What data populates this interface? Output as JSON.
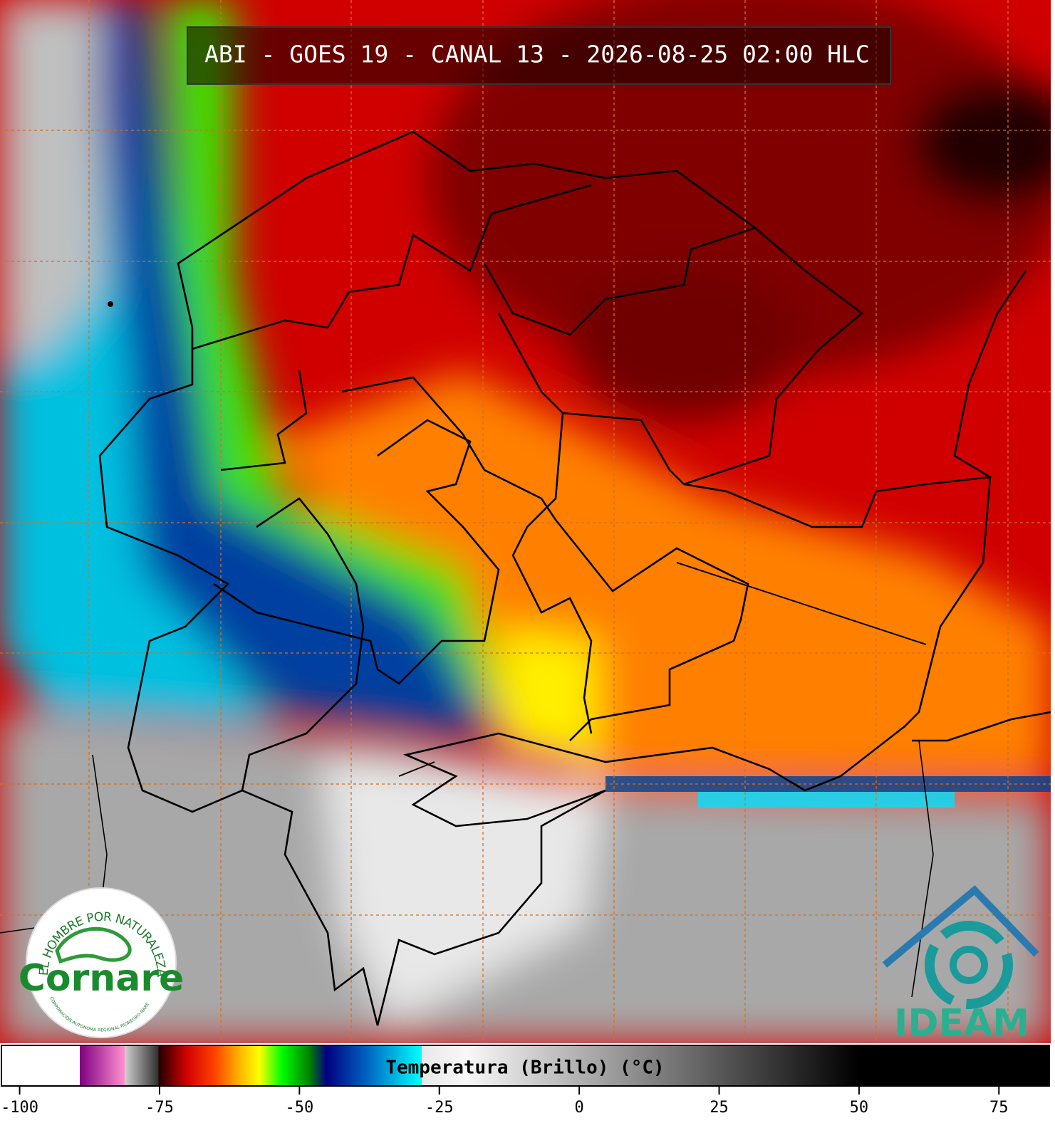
{
  "title": "ABI - GOES 19 - CANAL 13 - 2026-08-25 02:00 HLC",
  "colorbar": {
    "label": "Temperatura (Brillo) (°C)",
    "range": [
      -103,
      84
    ],
    "ticks": [
      -100,
      -75,
      -50,
      -25,
      0,
      25,
      50,
      75
    ],
    "stops": [
      {
        "value": -103,
        "color": "#ffffff"
      },
      {
        "value": -89,
        "color": "#ffffff"
      },
      {
        "value": -89,
        "color": "#800080"
      },
      {
        "value": -81,
        "color": "#ff90d0"
      },
      {
        "value": -81,
        "color": "#d0d0d0"
      },
      {
        "value": -75,
        "color": "#303030"
      },
      {
        "value": -75,
        "color": "#200000"
      },
      {
        "value": -70,
        "color": "#d00000"
      },
      {
        "value": -65,
        "color": "#ff4000"
      },
      {
        "value": -60,
        "color": "#ffc000"
      },
      {
        "value": -57,
        "color": "#ffff00"
      },
      {
        "value": -53,
        "color": "#00ff00"
      },
      {
        "value": -48,
        "color": "#008000"
      },
      {
        "value": -45,
        "color": "#000080"
      },
      {
        "value": -38,
        "color": "#0060c0"
      },
      {
        "value": -28,
        "color": "#00ffff"
      },
      {
        "value": -28,
        "color": "#e8e8e8"
      },
      {
        "value": -20,
        "color": "#f8f8f8"
      },
      {
        "value": 50,
        "color": "#000000"
      },
      {
        "value": 84,
        "color": "#000000"
      }
    ]
  },
  "logos": {
    "cornare": {
      "motto": "EL HOMBRE POR NATURALEZA",
      "name": "Cornare",
      "subtitle": "CORPORACIÓN AUTÓNOMA REGIONAL RIONEGRO-NARE"
    },
    "ideam": {
      "name": "IDEAM"
    }
  }
}
